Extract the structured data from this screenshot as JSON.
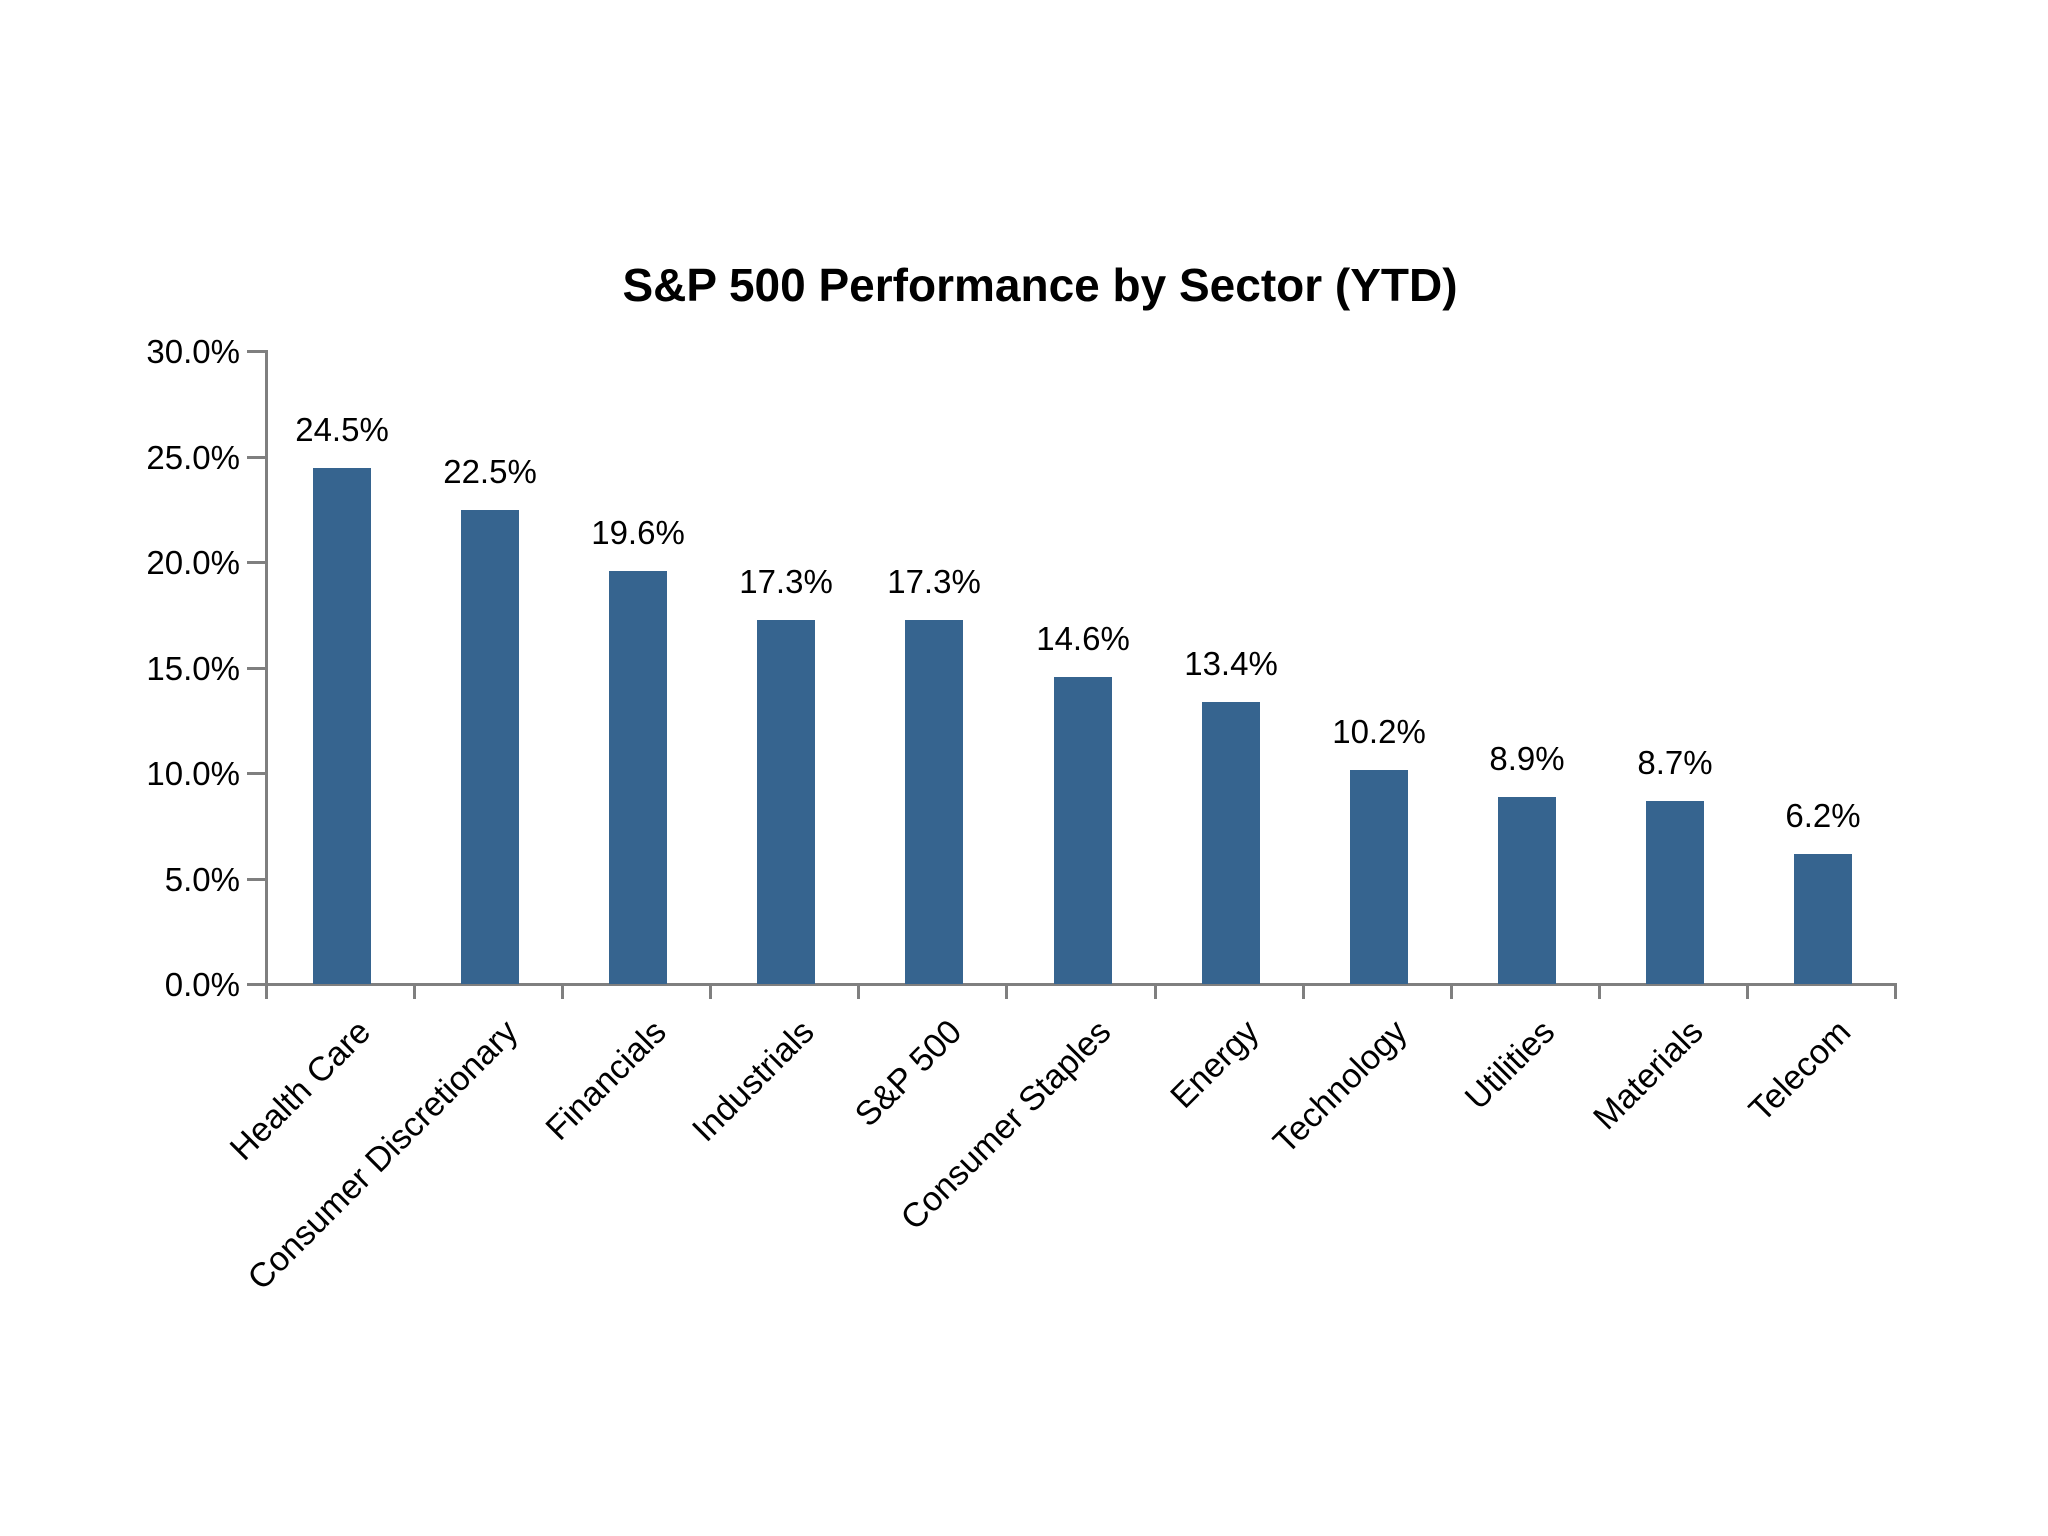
{
  "chart_data": {
    "type": "bar",
    "title": "S&P 500 Performance by Sector (YTD)",
    "categories": [
      "Health Care",
      "Consumer Discretionary",
      "Financials",
      "Industrials",
      "S&P 500",
      "Consumer Staples",
      "Energy",
      "Technology",
      "Utilities",
      "Materials",
      "Telecom"
    ],
    "values": [
      24.5,
      22.5,
      19.6,
      17.3,
      17.3,
      14.6,
      13.4,
      10.2,
      8.9,
      8.7,
      6.2
    ],
    "value_labels": [
      "24.5%",
      "22.5%",
      "19.6%",
      "17.3%",
      "17.3%",
      "14.6%",
      "13.4%",
      "10.2%",
      "8.9%",
      "8.7%",
      "6.2%"
    ],
    "y_tick_labels": [
      "30.0%",
      "25.0%",
      "20.0%",
      "15.0%",
      "10.0%",
      "5.0%",
      "0.0%"
    ],
    "ylim": [
      0,
      30
    ],
    "y_tick_step": 5,
    "grid": false,
    "legend": false,
    "xlabel": "",
    "ylabel": "",
    "colors": {
      "bar": "#36648F",
      "axis": "#7F7F7F",
      "text": "#000000",
      "background": "#FFFFFF"
    }
  }
}
